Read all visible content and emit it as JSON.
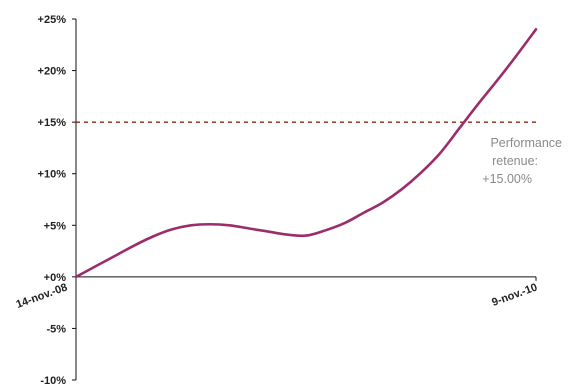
{
  "chart_data": {
    "type": "line",
    "title": "",
    "xlabel": "",
    "ylabel": "",
    "ylim": [
      -10,
      25
    ],
    "y_ticks": [
      25,
      20,
      15,
      10,
      5,
      0,
      -5,
      -10
    ],
    "y_tick_labels": [
      "+25%",
      "+20%",
      "+15%",
      "+10%",
      "+5%",
      "+0%",
      "-5%",
      "-10%"
    ],
    "x_labels": [
      "14-nov.-08",
      "9-nov.-10"
    ],
    "xlim": [
      0,
      24
    ],
    "series": [
      {
        "color": "#9b2d6b",
        "x": [
          0,
          1,
          2,
          3,
          4,
          5,
          6,
          7,
          8,
          9,
          10,
          11,
          12,
          13,
          14,
          15,
          16,
          17,
          18,
          19,
          20,
          21,
          22,
          23,
          24
        ],
        "values": [
          0.0,
          1.0,
          2.0,
          3.0,
          3.9,
          4.6,
          5.0,
          5.1,
          5.0,
          4.7,
          4.4,
          4.1,
          4.0,
          4.5,
          5.2,
          6.2,
          7.2,
          8.5,
          10.1,
          12.0,
          14.4,
          16.8,
          19.1,
          21.5,
          24.0
        ]
      }
    ],
    "reference_line": {
      "value": 15,
      "color": "#8b2a12",
      "style": "dashed"
    },
    "annotation": {
      "lines": [
        "Performance",
        "retenue:",
        "+15.00%"
      ],
      "color": "#8a8a8a"
    },
    "grid": false,
    "legend": "none"
  }
}
